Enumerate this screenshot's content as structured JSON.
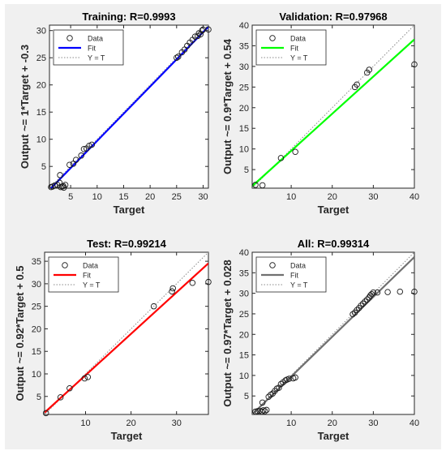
{
  "figure": {
    "background": "#f0f0f0"
  },
  "chart_data": [
    {
      "type": "scatter",
      "title": "Training: R=0.9993",
      "xlabel": "Target",
      "ylabel": "Output ~= 1*Target + -0.3",
      "xlim": [
        1,
        31
      ],
      "ylim": [
        1,
        31
      ],
      "xticks": [
        5,
        10,
        15,
        20,
        25,
        30
      ],
      "yticks": [
        5,
        10,
        15,
        20,
        25,
        30
      ],
      "fit": {
        "slope": 1,
        "intercept": -0.3,
        "color": "#0000ff"
      },
      "legend": {
        "position": "top-left",
        "entries": [
          "Data",
          "Fit",
          "Y = T"
        ]
      },
      "points": [
        [
          1.3,
          1.2
        ],
        [
          1.6,
          1.3
        ],
        [
          2.0,
          1.5
        ],
        [
          2.5,
          1.6
        ],
        [
          2.9,
          2.0
        ],
        [
          3.1,
          1.2
        ],
        [
          3.4,
          1.3
        ],
        [
          3.6,
          1.4
        ],
        [
          3.7,
          1.1
        ],
        [
          4.0,
          1.6
        ],
        [
          3.0,
          3.4
        ],
        [
          4.8,
          5.3
        ],
        [
          5.5,
          5.5
        ],
        [
          6.0,
          6.2
        ],
        [
          7.0,
          7.0
        ],
        [
          7.5,
          8.2
        ],
        [
          8.0,
          8.3
        ],
        [
          8.5,
          8.8
        ],
        [
          9.0,
          9.0
        ],
        [
          25.0,
          25.0
        ],
        [
          25.3,
          25.2
        ],
        [
          26.0,
          26.0
        ],
        [
          26.5,
          26.5
        ],
        [
          27.0,
          27.2
        ],
        [
          27.5,
          27.8
        ],
        [
          28.0,
          28.3
        ],
        [
          28.5,
          28.9
        ],
        [
          29.0,
          29.0
        ],
        [
          29.2,
          29.5
        ],
        [
          29.5,
          29.3
        ],
        [
          29.8,
          30.0
        ],
        [
          30.0,
          30.2
        ],
        [
          31.0,
          30.2
        ]
      ]
    },
    {
      "type": "scatter",
      "title": "Validation: R=0.97968",
      "xlabel": "Target",
      "ylabel": "Output ~= 0.9*Target + 0.54",
      "xlim": [
        0.5,
        40
      ],
      "ylim": [
        0.5,
        40
      ],
      "xticks": [
        10,
        20,
        30,
        40
      ],
      "yticks": [
        5,
        10,
        15,
        20,
        25,
        30,
        35,
        40
      ],
      "fit": {
        "slope": 0.9,
        "intercept": 0.54,
        "color": "#00ff00"
      },
      "legend": {
        "position": "top-left",
        "entries": [
          "Data",
          "Fit",
          "Y = T"
        ]
      },
      "points": [
        [
          1.3,
          1.3
        ],
        [
          3.0,
          1.2
        ],
        [
          7.5,
          7.8
        ],
        [
          11.0,
          9.3
        ],
        [
          25.5,
          25.0
        ],
        [
          26.0,
          25.6
        ],
        [
          28.5,
          28.5
        ],
        [
          29.0,
          29.2
        ],
        [
          40.0,
          30.5
        ]
      ]
    },
    {
      "type": "scatter",
      "title": "Test: R=0.99214",
      "xlabel": "Target",
      "ylabel": "Output ~= 0.92*Target + 0.5",
      "xlim": [
        1,
        37
      ],
      "ylim": [
        1,
        37
      ],
      "xticks": [
        10,
        20,
        30
      ],
      "yticks": [
        5,
        10,
        15,
        20,
        25,
        30,
        35
      ],
      "fit": {
        "slope": 0.92,
        "intercept": 0.5,
        "color": "#ff0000"
      },
      "legend": {
        "position": "top-left",
        "entries": [
          "Data",
          "Fit",
          "Y = T"
        ]
      },
      "points": [
        [
          1.3,
          1.3
        ],
        [
          4.5,
          4.8
        ],
        [
          6.5,
          6.8
        ],
        [
          9.8,
          9.0
        ],
        [
          10.5,
          9.3
        ],
        [
          25.0,
          25.0
        ],
        [
          29.0,
          28.3
        ],
        [
          29.2,
          29.0
        ],
        [
          33.5,
          30.2
        ],
        [
          37.0,
          30.4
        ]
      ]
    },
    {
      "type": "scatter",
      "title": "All: R=0.99314",
      "xlabel": "Target",
      "ylabel": "Output ~= 0.97*Target + 0.028",
      "xlim": [
        0.5,
        40
      ],
      "ylim": [
        0.5,
        40
      ],
      "xticks": [
        10,
        20,
        30,
        40
      ],
      "yticks": [
        5,
        10,
        15,
        20,
        25,
        30,
        35,
        40
      ],
      "fit": {
        "slope": 0.97,
        "intercept": 0.028,
        "color": "#707070"
      },
      "legend": {
        "position": "top-left",
        "entries": [
          "Data",
          "Fit",
          "Y = T"
        ]
      },
      "points": [
        [
          1.3,
          1.2
        ],
        [
          1.8,
          1.3
        ],
        [
          2.3,
          1.4
        ],
        [
          2.8,
          1.2
        ],
        [
          3.2,
          1.5
        ],
        [
          3.6,
          1.3
        ],
        [
          4.0,
          1.6
        ],
        [
          3.0,
          3.4
        ],
        [
          4.5,
          4.8
        ],
        [
          5.0,
          5.3
        ],
        [
          5.5,
          5.6
        ],
        [
          6.0,
          6.2
        ],
        [
          6.5,
          6.8
        ],
        [
          7.0,
          7.0
        ],
        [
          7.5,
          7.9
        ],
        [
          8.0,
          8.3
        ],
        [
          8.6,
          8.8
        ],
        [
          9.0,
          9.0
        ],
        [
          9.5,
          9.2
        ],
        [
          10.5,
          9.3
        ],
        [
          11.0,
          9.5
        ],
        [
          25.0,
          24.9
        ],
        [
          25.5,
          25.3
        ],
        [
          26.0,
          25.9
        ],
        [
          26.5,
          26.4
        ],
        [
          27.0,
          27.0
        ],
        [
          27.5,
          27.5
        ],
        [
          28.0,
          28.0
        ],
        [
          28.5,
          28.5
        ],
        [
          29.0,
          29.0
        ],
        [
          29.3,
          29.5
        ],
        [
          29.6,
          29.8
        ],
        [
          30.0,
          30.2
        ],
        [
          31.0,
          30.2
        ],
        [
          33.5,
          30.3
        ],
        [
          36.5,
          30.4
        ],
        [
          40.0,
          30.4
        ]
      ]
    }
  ]
}
